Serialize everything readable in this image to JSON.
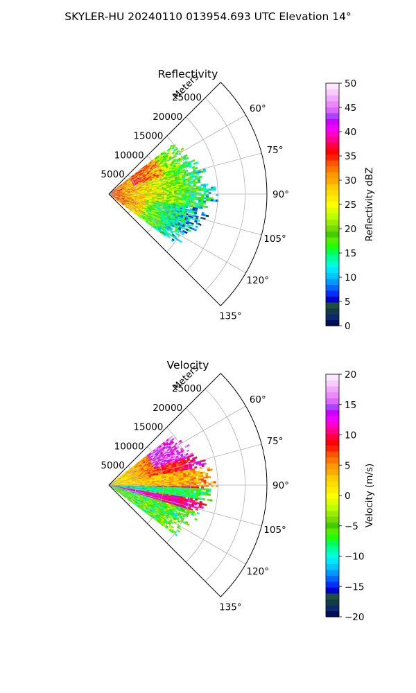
{
  "figure": {
    "title": "SKYLER-HU  20240110  013954.693 UTC Elevation 14°"
  },
  "chart_data": [
    {
      "type": "polar-sector",
      "title": "Reflectivity",
      "range_label": "Meters",
      "r_ticks": [
        5000,
        10000,
        15000,
        20000,
        25000
      ],
      "r_tick_labels": [
        "5000",
        "10000",
        "15000",
        "20000",
        "25000"
      ],
      "r_max": 29000,
      "theta_ticks": [
        60,
        75,
        90,
        105,
        120,
        135
      ],
      "theta_tick_labels": [
        "60°",
        "75°",
        "90°",
        "105°",
        "120°",
        "135°"
      ],
      "theta_range": [
        45,
        135
      ],
      "data_extent": {
        "azimuth": [
          52,
          127
        ],
        "max_range_m": 19000
      },
      "colorbar": {
        "label": "Reflectivity dBZ",
        "vmin": 0,
        "vmax": 50,
        "ticks": [
          0,
          5,
          10,
          15,
          20,
          25,
          30,
          35,
          40,
          45,
          50
        ],
        "tick_labels": [
          "0",
          "5",
          "10",
          "15",
          "20",
          "25",
          "30",
          "35",
          "40",
          "45",
          "50"
        ],
        "colors": [
          "#000e5c",
          "#0a2a6c",
          "#143a4a",
          "#1e5040",
          "#0000c8",
          "#0030ff",
          "#0066ff",
          "#0099ff",
          "#00c8ff",
          "#00e8ff",
          "#00ffd5",
          "#00ff99",
          "#00ff55",
          "#22ff00",
          "#55ee00",
          "#44cc00",
          "#77dd00",
          "#99ee00",
          "#bbff00",
          "#ddff00",
          "#ffff00",
          "#ffee00",
          "#ffdd00",
          "#ffcc00",
          "#ffaa00",
          "#ff9900",
          "#ff7700",
          "#ff5500",
          "#ff2200",
          "#ff0000",
          "#ff0044",
          "#ff0088",
          "#ff00cc",
          "#ee00ff",
          "#cc00ff",
          "#aa44ff",
          "#dd66ff",
          "#ee88ff",
          "#f2aaff",
          "#f8ccff",
          "#fde8ff"
        ]
      }
    },
    {
      "type": "polar-sector",
      "title": "Velocity",
      "range_label": "Meters",
      "r_ticks": [
        5000,
        10000,
        15000,
        20000,
        25000
      ],
      "r_tick_labels": [
        "5000",
        "10000",
        "15000",
        "20000",
        "25000"
      ],
      "r_max": 29000,
      "theta_ticks": [
        60,
        75,
        90,
        105,
        120,
        135
      ],
      "theta_tick_labels": [
        "60°",
        "75°",
        "90°",
        "105°",
        "120°",
        "135°"
      ],
      "theta_range": [
        45,
        135
      ],
      "data_extent": {
        "azimuth": [
          52,
          127
        ],
        "max_range_m": 19000
      },
      "colorbar": {
        "label": "Velocity (m/s)",
        "vmin": -20,
        "vmax": 20,
        "ticks": [
          -20,
          -15,
          -10,
          -5,
          0,
          5,
          10,
          15,
          20
        ],
        "tick_labels": [
          "−20",
          "−15",
          "−10",
          "−5",
          "0",
          "5",
          "10",
          "15",
          "20"
        ],
        "colors": [
          "#000e5c",
          "#0a2a6c",
          "#143a4a",
          "#1e5040",
          "#0000c8",
          "#0030ff",
          "#0066ff",
          "#0099ff",
          "#00c8ff",
          "#00e8ff",
          "#00ffd5",
          "#00ff99",
          "#00ff55",
          "#22ff00",
          "#55ee00",
          "#44cc00",
          "#77dd00",
          "#99ee00",
          "#bbff00",
          "#ddff00",
          "#ffff00",
          "#ffee00",
          "#ffdd00",
          "#ffcc00",
          "#ffaa00",
          "#ff9900",
          "#ff7700",
          "#ff5500",
          "#ff2200",
          "#ff0000",
          "#ff0044",
          "#ff0088",
          "#ff00cc",
          "#ee00ff",
          "#cc00ff",
          "#aa44ff",
          "#dd66ff",
          "#ee88ff",
          "#f2aaff",
          "#f8ccff",
          "#fde8ff"
        ]
      }
    }
  ]
}
